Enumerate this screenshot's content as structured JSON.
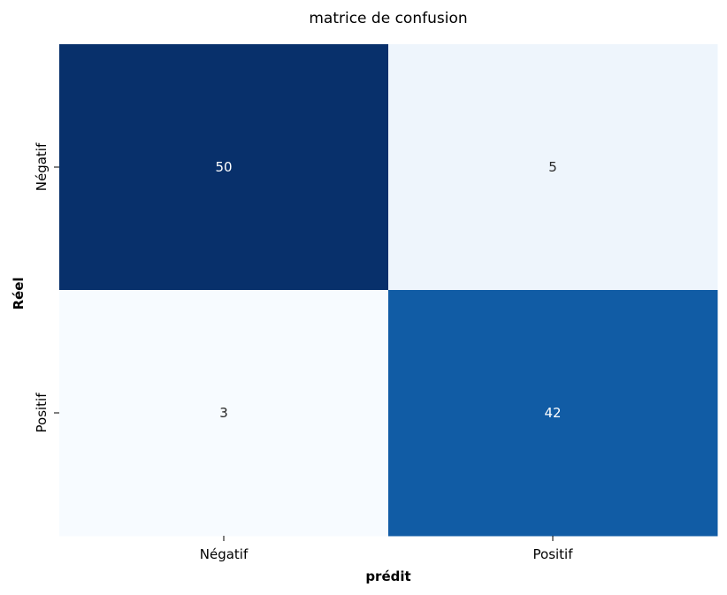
{
  "chart_data": {
    "type": "heatmap",
    "title": "matrice de confusion",
    "xlabel": "prédit",
    "ylabel": "Réel",
    "x_categories": [
      "Négatif",
      "Positif"
    ],
    "y_categories": [
      "Négatif",
      "Positif"
    ],
    "values": [
      [
        50,
        5
      ],
      [
        3,
        42
      ]
    ],
    "colormap": "Blues",
    "colorbar": false,
    "annotations": true,
    "cell_colors": [
      [
        "#08306b",
        "#eef5fc"
      ],
      [
        "#f7fbff",
        "#115ca5"
      ]
    ],
    "text_colors": [
      [
        "#ffffff",
        "#262626"
      ],
      [
        "#262626",
        "#ffffff"
      ]
    ]
  }
}
